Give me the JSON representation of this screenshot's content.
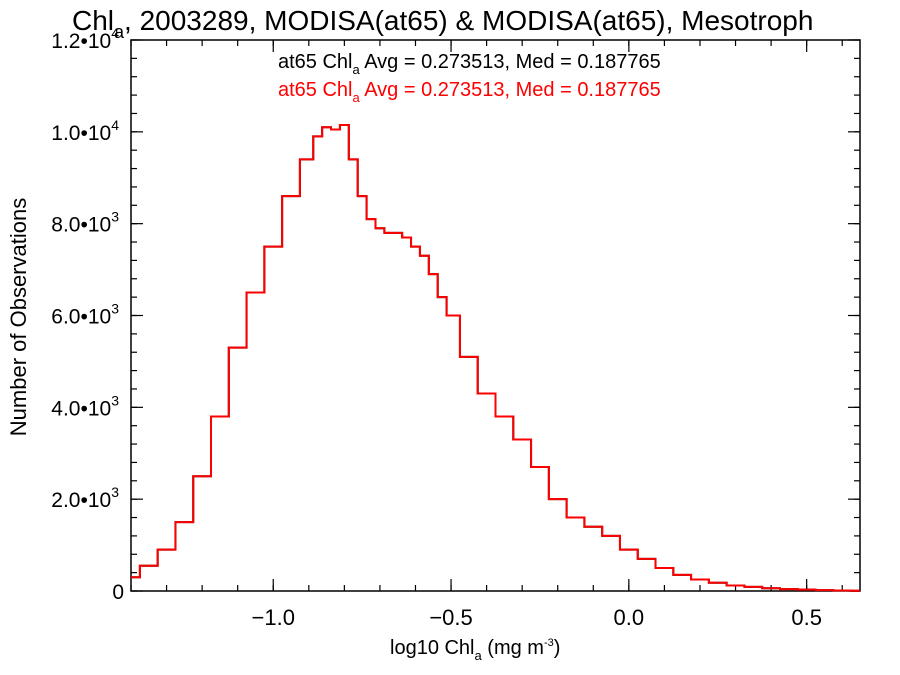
{
  "chart_data": {
    "type": "line",
    "title": {
      "pre": "Chl",
      "sub": "a",
      "post": ", 2003289, MODISA(at65) & MODISA(at65), Mesotroph"
    },
    "xlabel": {
      "pre": "log10 Chl",
      "sub": "a",
      "post": " (mg m",
      "sup": "-3",
      "end": ")"
    },
    "ylabel": "Number of Observations",
    "xlim": [
      -1.4,
      0.65
    ],
    "ylim": [
      0,
      12000
    ],
    "x_ticks": [
      {
        "value": -1.0,
        "label": "−1.0"
      },
      {
        "value": -0.5,
        "label": "−0.5"
      },
      {
        "value": 0.0,
        "label": "0.0"
      },
      {
        "value": 0.5,
        "label": "0.5"
      }
    ],
    "y_ticks": [
      {
        "value": 0,
        "base": "0",
        "exp": ""
      },
      {
        "value": 2000,
        "base": "2.0•10",
        "exp": "3"
      },
      {
        "value": 4000,
        "base": "4.0•10",
        "exp": "3"
      },
      {
        "value": 6000,
        "base": "6.0•10",
        "exp": "3"
      },
      {
        "value": 8000,
        "base": "8.0•10",
        "exp": "3"
      },
      {
        "value": 10000,
        "base": "1.0•10",
        "exp": "4"
      },
      {
        "value": 12000,
        "base": "1.2•10",
        "exp": "4"
      }
    ],
    "annotations": [
      {
        "pre": "at65 Chl",
        "sub": "a",
        "post": " Avg = 0.273513, Med = 0.187765",
        "color": "#000000"
      },
      {
        "pre": "at65 Chl",
        "sub": "a",
        "post": " Avg = 0.273513, Med = 0.187765",
        "color": "#ff0000"
      }
    ],
    "series": [
      {
        "color": "#000000",
        "x": [
          -1.4,
          -1.35,
          -1.3,
          -1.25,
          -1.2,
          -1.15,
          -1.1,
          -1.05,
          -1.0,
          -0.95,
          -0.9,
          -0.875,
          -0.85,
          -0.825,
          -0.8,
          -0.775,
          -0.75,
          -0.725,
          -0.7,
          -0.675,
          -0.65,
          -0.625,
          -0.6,
          -0.575,
          -0.55,
          -0.525,
          -0.5,
          -0.45,
          -0.4,
          -0.35,
          -0.3,
          -0.25,
          -0.2,
          -0.15,
          -0.1,
          -0.05,
          0.0,
          0.05,
          0.1,
          0.15,
          0.2,
          0.25,
          0.3,
          0.35,
          0.4,
          0.45,
          0.5,
          0.55,
          0.6,
          0.65
        ],
        "y": [
          300,
          550,
          900,
          1500,
          2500,
          3800,
          5300,
          6500,
          7500,
          8600,
          9400,
          9900,
          10100,
          10050,
          10150,
          9400,
          8600,
          8100,
          7900,
          7800,
          7800,
          7700,
          7500,
          7300,
          6900,
          6400,
          6000,
          5100,
          4300,
          3800,
          3300,
          2700,
          2000,
          1600,
          1400,
          1200,
          900,
          700,
          500,
          350,
          250,
          180,
          120,
          90,
          60,
          40,
          30,
          20,
          10,
          5
        ]
      },
      {
        "color": "#ff0000",
        "x": [
          -1.4,
          -1.35,
          -1.3,
          -1.25,
          -1.2,
          -1.15,
          -1.1,
          -1.05,
          -1.0,
          -0.95,
          -0.9,
          -0.875,
          -0.85,
          -0.825,
          -0.8,
          -0.775,
          -0.75,
          -0.725,
          -0.7,
          -0.675,
          -0.65,
          -0.625,
          -0.6,
          -0.575,
          -0.55,
          -0.525,
          -0.5,
          -0.45,
          -0.4,
          -0.35,
          -0.3,
          -0.25,
          -0.2,
          -0.15,
          -0.1,
          -0.05,
          0.0,
          0.05,
          0.1,
          0.15,
          0.2,
          0.25,
          0.3,
          0.35,
          0.4,
          0.45,
          0.5,
          0.55,
          0.6,
          0.65
        ],
        "y": [
          300,
          550,
          900,
          1500,
          2500,
          3800,
          5300,
          6500,
          7500,
          8600,
          9400,
          9900,
          10100,
          10050,
          10150,
          9400,
          8600,
          8100,
          7900,
          7800,
          7800,
          7700,
          7500,
          7300,
          6900,
          6400,
          6000,
          5100,
          4300,
          3800,
          3300,
          2700,
          2000,
          1600,
          1400,
          1200,
          900,
          700,
          500,
          350,
          250,
          180,
          120,
          90,
          60,
          40,
          30,
          20,
          10,
          5
        ]
      }
    ]
  }
}
